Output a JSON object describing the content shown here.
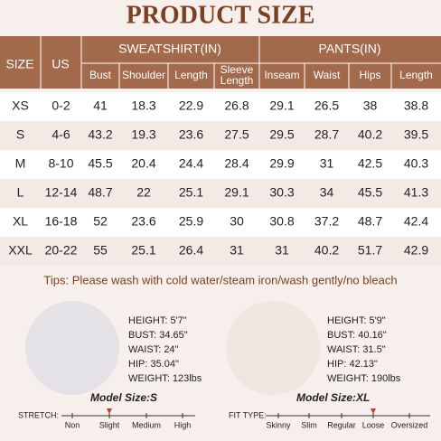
{
  "title": "PRODUCT SIZE",
  "table": {
    "group_headers": [
      "SIZE",
      "US",
      "SWEATSHIRT(IN)",
      "PANTS(IN)"
    ],
    "sub_headers": [
      "Bust",
      "Shoulder",
      "Length",
      "Sleeve Length",
      "Inseam",
      "Waist",
      "Hips",
      "Length"
    ],
    "rows": [
      [
        "XS",
        "0-2",
        41,
        18.3,
        22.9,
        26.8,
        29.1,
        26.5,
        38,
        38.8
      ],
      [
        "S",
        "4-6",
        43.2,
        19.3,
        23.6,
        27.5,
        29.5,
        28.7,
        40.2,
        39.5
      ],
      [
        "M",
        "8-10",
        45.5,
        20.4,
        24.4,
        28.4,
        29.9,
        31,
        42.5,
        40.3
      ],
      [
        "L",
        "12-14",
        48.7,
        22,
        25.1,
        29.1,
        30.3,
        34,
        45.5,
        41.3
      ],
      [
        "XL",
        "16-18",
        52,
        23.6,
        25.9,
        30,
        30.8,
        37.2,
        48.7,
        42.4
      ],
      [
        "XXL",
        "20-22",
        55,
        25.1,
        26.4,
        31,
        31,
        40.2,
        51.7,
        42.9
      ]
    ]
  },
  "tips": "Tips: Please wash with cold water/steam iron/wash gently/no bleach",
  "models": [
    {
      "stats": [
        "HEIGHT: 5'7\"",
        "BUST: 34.65\"",
        "WAIST: 24\"",
        "HIP: 35.04\"",
        "WEIGHT: 123lbs"
      ],
      "size_label": "Model Size:S"
    },
    {
      "stats": [
        "HEIGHT: 5'9\"",
        "BUST: 40.16\"",
        "WAIST: 31.5\"",
        "HIP: 42.13\"",
        "WEIGHT: 190lbs"
      ],
      "size_label": "Model Size:XL"
    }
  ],
  "stretch": {
    "label": "STRETCH:",
    "options": [
      "Non",
      "Slight",
      "Medium",
      "High"
    ]
  },
  "fit_type": {
    "label": "FIT TYPE:",
    "options": [
      "Skinny",
      "Slim",
      "Regular",
      "Loose",
      "Oversized"
    ]
  }
}
